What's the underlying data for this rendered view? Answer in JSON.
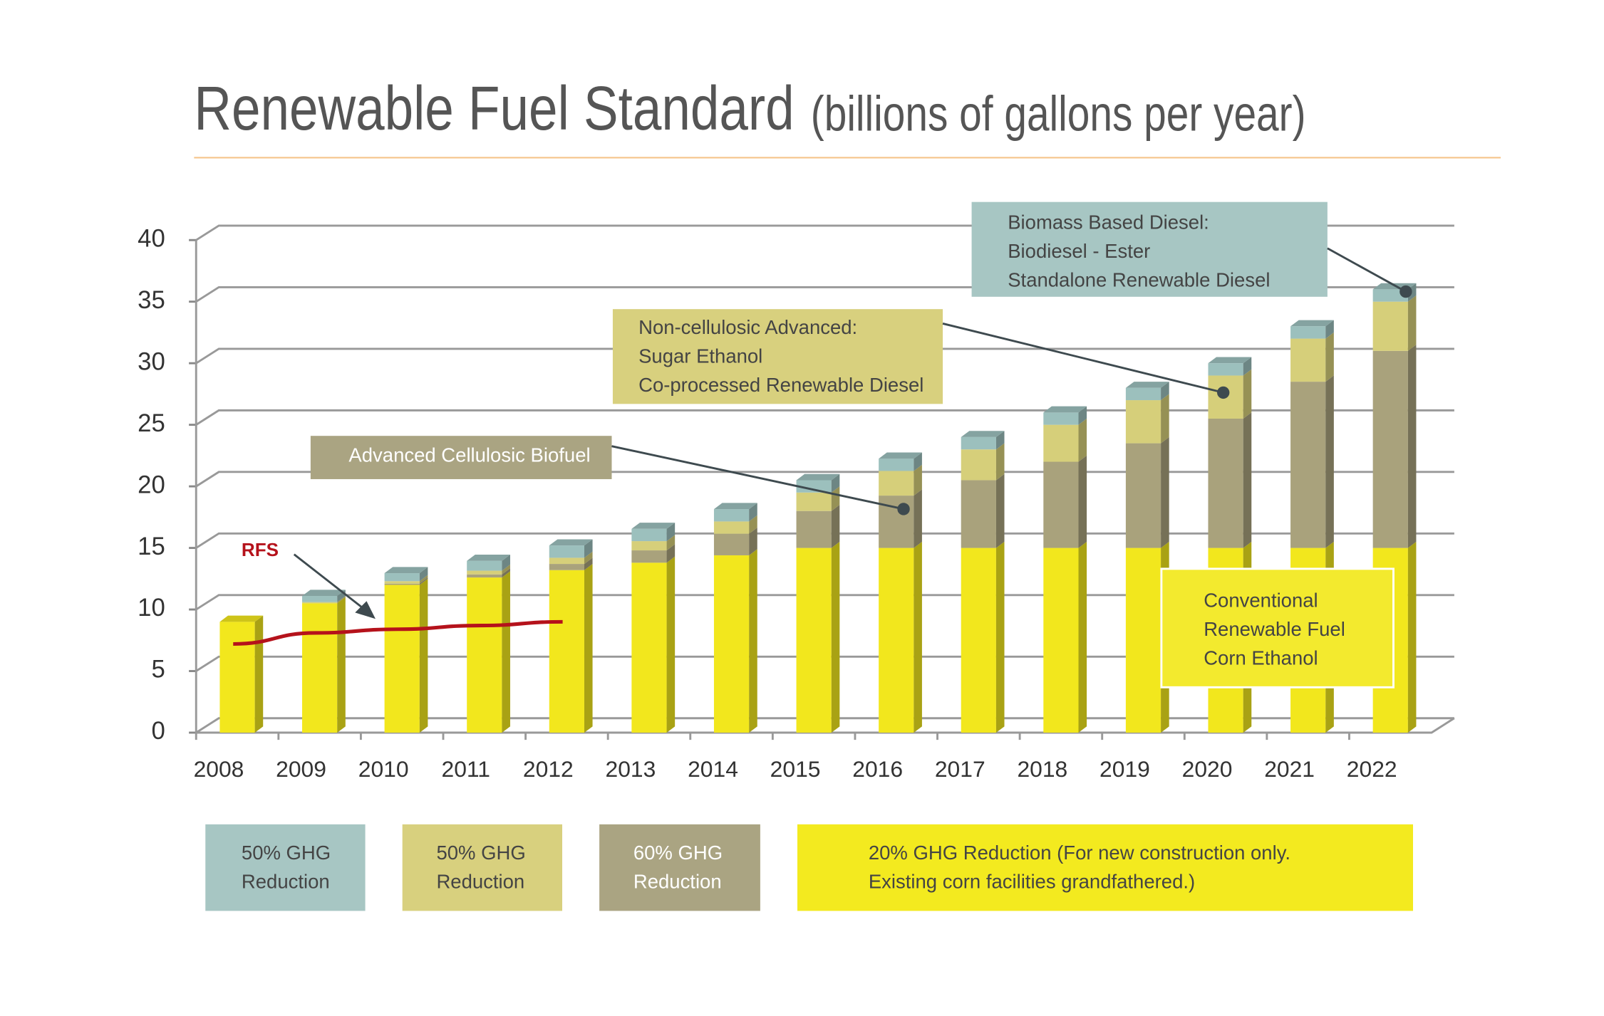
{
  "chart_data": {
    "type": "bar",
    "title": "Renewable Fuel Standard",
    "subtitle": "(billions of gallons per year)",
    "stacked": true,
    "categories": [
      "2008",
      "2009",
      "2010",
      "2011",
      "2012",
      "2013",
      "2014",
      "2015",
      "2016",
      "2017",
      "2018",
      "2019",
      "2020",
      "2021",
      "2022"
    ],
    "series": [
      {
        "name": "Conventional Renewable Fuel Corn Ethanol",
        "color": "#f2e71d",
        "values": [
          9,
          10.5,
          12,
          12.6,
          13.2,
          13.8,
          14.4,
          15,
          15,
          15,
          15,
          15,
          15,
          15,
          15
        ]
      },
      {
        "name": "Advanced Cellulosic Biofuel",
        "color": "#a9a27c",
        "values": [
          0,
          0,
          0.1,
          0.25,
          0.5,
          1,
          1.75,
          3,
          4.25,
          5.5,
          7,
          8.5,
          10.5,
          13.5,
          16
        ]
      },
      {
        "name": "Non-cellulosic Advanced",
        "color": "#d6cf7a",
        "values": [
          0,
          0.1,
          0.2,
          0.3,
          0.5,
          0.75,
          1,
          1.5,
          2,
          2.5,
          3,
          3.5,
          3.5,
          3.5,
          4
        ]
      },
      {
        "name": "Biomass Based Diesel",
        "color": "#9cc0bd",
        "values": [
          0,
          0.5,
          0.65,
          0.8,
          1,
          1,
          1,
          1,
          1,
          1,
          1,
          1,
          1,
          1,
          1
        ]
      }
    ],
    "rfs_line": {
      "name": "RFS",
      "color": "#b5121b",
      "values": [
        7.2,
        8.1,
        8.4,
        8.7,
        9.0,
        null,
        null,
        null,
        null,
        null,
        null,
        null,
        null,
        null,
        null
      ]
    },
    "ylim": [
      0,
      40
    ],
    "yticks": [
      0,
      5,
      10,
      15,
      20,
      25,
      30,
      35,
      40
    ],
    "grid": true,
    "annotations": [
      {
        "lines": [
          "Biomass Based Diesel:",
          "Biodiesel - Ester",
          "Standalone Renewable Diesel"
        ]
      },
      {
        "lines": [
          "Non-cellulosic Advanced:",
          "Sugar Ethanol",
          "Co-processed Renewable Diesel"
        ]
      },
      {
        "lines": [
          "Advanced Cellulosic Biofuel"
        ]
      },
      {
        "lines": [
          "Conventional",
          "Renewable Fuel",
          "Corn Ethanol"
        ]
      }
    ],
    "ghg_labels": [
      {
        "lines": [
          "50% GHG",
          "Reduction"
        ]
      },
      {
        "lines": [
          "50% GHG",
          "Reduction"
        ]
      },
      {
        "lines": [
          "60% GHG",
          "Reduction"
        ]
      },
      {
        "lines": [
          "20% GHG Reduction (For new construction only.",
          "Existing corn facilities grandfathered.)"
        ]
      }
    ]
  }
}
